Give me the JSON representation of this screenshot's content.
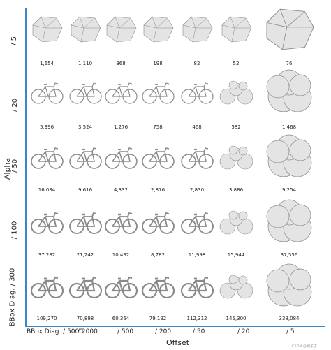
{
  "axes": {
    "y_title": "Alpha",
    "x_title": "Offset",
    "row_labels": [
      "/ 5",
      "/ 20",
      "/ 50",
      "/ 100",
      "BBox Diag. / 300"
    ],
    "col_labels": [
      "BBox Diag. / 5000",
      "/ 2000",
      "/ 500",
      "/ 200",
      "/ 50",
      "/ 20",
      "/ 5"
    ]
  },
  "grid": {
    "rows": [
      {
        "counts": [
          "1,654",
          "1,110",
          "368",
          "198",
          "82",
          "52",
          "76"
        ],
        "stage": [
          "rock",
          "rock",
          "rock",
          "rock",
          "rock",
          "rock",
          "rock"
        ]
      },
      {
        "counts": [
          "5,396",
          "3,524",
          "1,276",
          "758",
          "468",
          "582",
          "1,468"
        ],
        "stage": [
          "bike",
          "bike",
          "bike",
          "bike",
          "bike",
          "blob",
          "sphere"
        ]
      },
      {
        "counts": [
          "16,034",
          "9,616",
          "4,332",
          "2,876",
          "2,830",
          "3,886",
          "9,254"
        ],
        "stage": [
          "bike",
          "bike",
          "bike",
          "bike",
          "bike",
          "blob",
          "sphere"
        ]
      },
      {
        "counts": [
          "37,282",
          "21,242",
          "10,432",
          "8,782",
          "11,998",
          "15,944",
          "37,556"
        ],
        "stage": [
          "bike",
          "bike",
          "bike",
          "bike",
          "bike",
          "blob",
          "sphere"
        ]
      },
      {
        "counts": [
          "109,270",
          "70,898",
          "60,364",
          "79,192",
          "112,312",
          "145,300",
          "338,084"
        ],
        "stage": [
          "bike",
          "bike",
          "bike",
          "bike",
          "bike",
          "blob",
          "sphere"
        ]
      }
    ]
  },
  "colors": {
    "axis": "#3a86c8",
    "shape_fill": "#e4e4e4",
    "shape_stroke": "#8a8a8a"
  },
  "watermark": "CSDN @刚子丁"
}
